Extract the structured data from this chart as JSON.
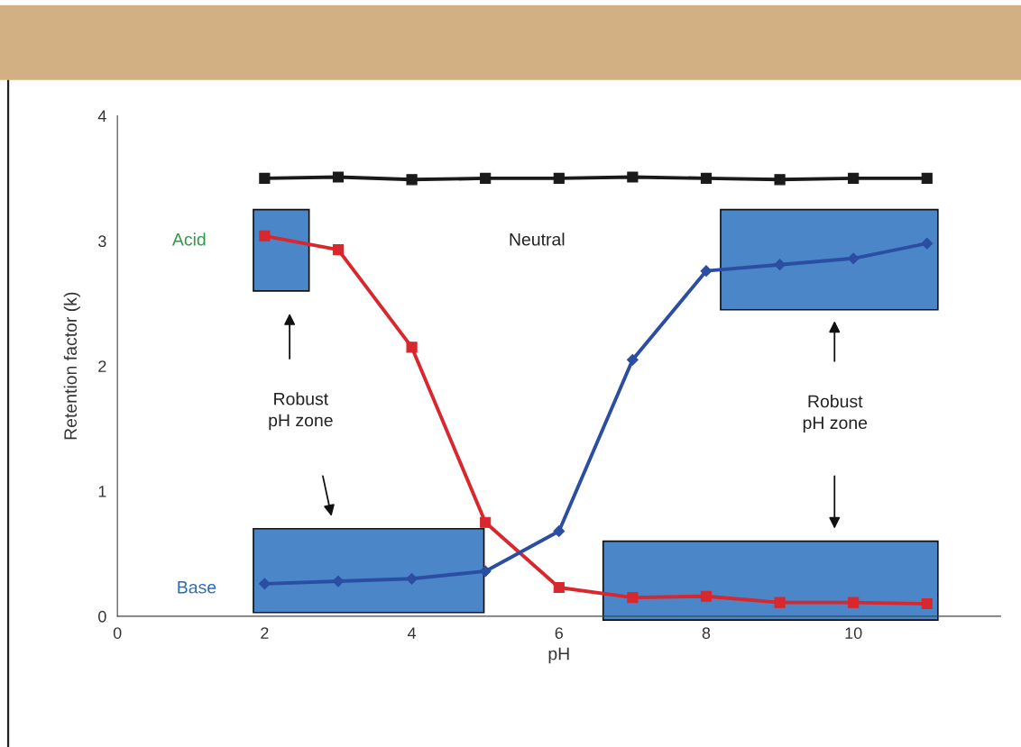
{
  "chart_data": {
    "type": "line",
    "xlabel": "pH",
    "ylabel": "Retention factor (k)",
    "xlim": [
      0,
      12
    ],
    "ylim": [
      0,
      4
    ],
    "xticks": [
      0,
      2,
      4,
      6,
      8,
      10
    ],
    "yticks": [
      0,
      1,
      2,
      3,
      4
    ],
    "grid": false,
    "legend": false,
    "line_style": "solid",
    "series": [
      {
        "color": "#1a1a1a",
        "marker": "square",
        "x": [
          2,
          3,
          4,
          5,
          6,
          7,
          8,
          9,
          10,
          11
        ],
        "values": [
          3.5,
          3.51,
          3.49,
          3.5,
          3.5,
          3.51,
          3.5,
          3.49,
          3.5,
          3.5
        ]
      },
      {
        "color": "#d9272e",
        "marker": "square",
        "x": [
          2,
          3,
          4,
          5,
          6,
          7,
          8,
          9,
          10,
          11
        ],
        "values": [
          3.04,
          2.93,
          2.15,
          0.75,
          0.23,
          0.15,
          0.16,
          0.11,
          0.11,
          0.1
        ]
      },
      {
        "color": "#2b4ea2",
        "marker": "diamond",
        "x": [
          2,
          3,
          4,
          5,
          6,
          7,
          8,
          9,
          10,
          11
        ],
        "values": [
          0.26,
          0.28,
          0.3,
          0.36,
          0.68,
          2.05,
          2.76,
          2.81,
          2.86,
          2.98
        ]
      }
    ],
    "annotations": [
      "Acid",
      "Base",
      "Neutral",
      "Robust\npH zone",
      "Robust\npH zone"
    ]
  }
}
